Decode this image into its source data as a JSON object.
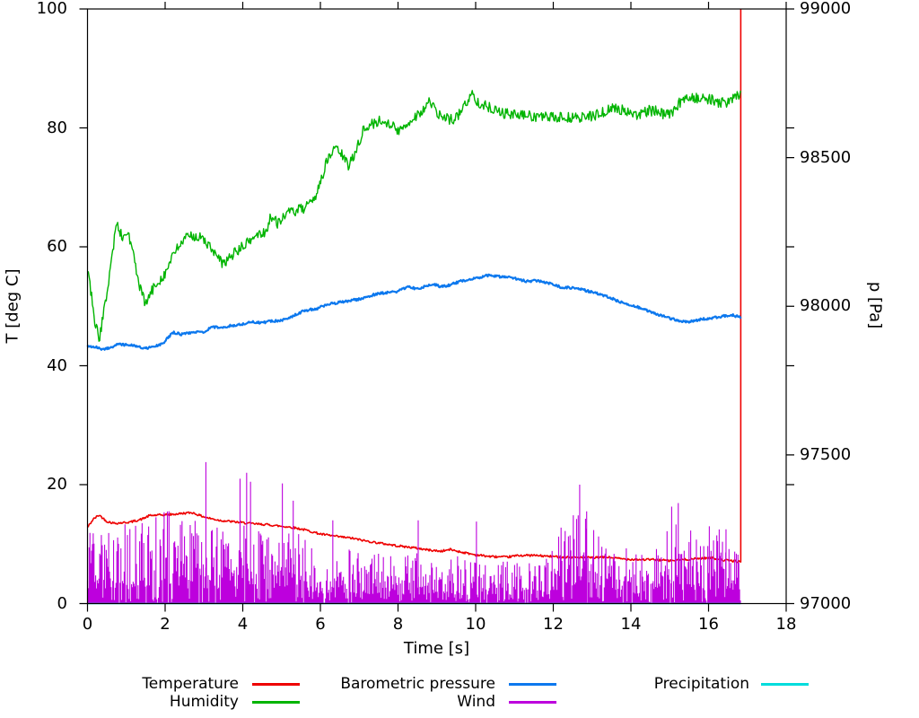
{
  "chart_data": {
    "type": "line",
    "title": "",
    "xlabel": "Time [s]",
    "ylabel_left": "T [deg C]",
    "ylabel_right": "p [Pa]",
    "xlim": [
      0,
      18
    ],
    "ylim_left": [
      0,
      100
    ],
    "ylim_right": [
      97000,
      99000
    ],
    "x_ticks": [
      0,
      2,
      4,
      6,
      8,
      10,
      12,
      14,
      16,
      18
    ],
    "y_ticks_left": [
      0,
      20,
      40,
      60,
      80,
      100
    ],
    "y_ticks_right": [
      97000,
      97500,
      98000,
      98500,
      99000
    ],
    "grid": false,
    "legend_position": "bottom",
    "x_end": 16.83,
    "noise_seed": 42,
    "series": [
      {
        "id": "temperature",
        "name": "Temperature",
        "color": "#ee0000",
        "axis": "left",
        "style": "line",
        "noise": 0.18,
        "width": 1.6,
        "spike_to_top": true,
        "anchors": [
          [
            0,
            12.8
          ],
          [
            0.15,
            14.2
          ],
          [
            0.3,
            14.9
          ],
          [
            0.5,
            13.8
          ],
          [
            0.7,
            13.5
          ],
          [
            0.9,
            13.6
          ],
          [
            1.1,
            13.7
          ],
          [
            1.4,
            14.2
          ],
          [
            1.6,
            14.8
          ],
          [
            1.9,
            14.9
          ],
          [
            2.2,
            15.0
          ],
          [
            2.5,
            15.2
          ],
          [
            2.7,
            15.3
          ],
          [
            2.9,
            14.8
          ],
          [
            3.1,
            14.4
          ],
          [
            3.4,
            14.0
          ],
          [
            3.7,
            13.8
          ],
          [
            4.0,
            13.6
          ],
          [
            4.3,
            13.4
          ],
          [
            4.6,
            13.3
          ],
          [
            5.0,
            13.0
          ],
          [
            5.3,
            12.8
          ],
          [
            5.6,
            12.4
          ],
          [
            6.0,
            11.7
          ],
          [
            6.4,
            11.3
          ],
          [
            6.8,
            11.0
          ],
          [
            7.2,
            10.5
          ],
          [
            7.6,
            10.1
          ],
          [
            8.0,
            9.7
          ],
          [
            8.4,
            9.4
          ],
          [
            8.8,
            9.0
          ],
          [
            9.1,
            8.8
          ],
          [
            9.35,
            9.1
          ],
          [
            9.6,
            8.7
          ],
          [
            10.0,
            8.2
          ],
          [
            10.4,
            7.9
          ],
          [
            10.8,
            7.8
          ],
          [
            11.1,
            8.1
          ],
          [
            11.5,
            8.1
          ],
          [
            12.0,
            7.9
          ],
          [
            12.5,
            7.8
          ],
          [
            13.0,
            7.7
          ],
          [
            13.4,
            7.8
          ],
          [
            13.8,
            7.5
          ],
          [
            14.2,
            7.4
          ],
          [
            14.6,
            7.4
          ],
          [
            15.0,
            7.2
          ],
          [
            15.4,
            7.4
          ],
          [
            15.8,
            7.6
          ],
          [
            16.1,
            7.7
          ],
          [
            16.35,
            7.3
          ],
          [
            16.6,
            7.2
          ],
          [
            16.83,
            7.0
          ]
        ]
      },
      {
        "id": "humidity",
        "name": "Humidity",
        "color": "#00b400",
        "axis": "left",
        "style": "line",
        "noise": 0.9,
        "width": 1.4,
        "spike_to_top": false,
        "anchors": [
          [
            0,
            56.5
          ],
          [
            0.1,
            52
          ],
          [
            0.2,
            47
          ],
          [
            0.3,
            44.5
          ],
          [
            0.45,
            50
          ],
          [
            0.6,
            57
          ],
          [
            0.75,
            64
          ],
          [
            0.9,
            61.5
          ],
          [
            1.05,
            62.5
          ],
          [
            1.2,
            58
          ],
          [
            1.35,
            53
          ],
          [
            1.5,
            50.3
          ],
          [
            1.65,
            52.5
          ],
          [
            1.8,
            54
          ],
          [
            2.0,
            55.5
          ],
          [
            2.2,
            58.5
          ],
          [
            2.45,
            61
          ],
          [
            2.7,
            62
          ],
          [
            2.9,
            61.5
          ],
          [
            3.1,
            60.5
          ],
          [
            3.3,
            58.5
          ],
          [
            3.5,
            57
          ],
          [
            3.7,
            58.5
          ],
          [
            3.9,
            59.5
          ],
          [
            4.1,
            60.5
          ],
          [
            4.35,
            62
          ],
          [
            4.6,
            62.5
          ],
          [
            4.7,
            65
          ],
          [
            4.9,
            64
          ],
          [
            5.1,
            65.5
          ],
          [
            5.35,
            66
          ],
          [
            5.6,
            66.5
          ],
          [
            5.8,
            67.3
          ],
          [
            6.0,
            71
          ],
          [
            6.15,
            74
          ],
          [
            6.3,
            76
          ],
          [
            6.45,
            76.5
          ],
          [
            6.6,
            75
          ],
          [
            6.72,
            73.5
          ],
          [
            6.9,
            76
          ],
          [
            7.1,
            79.5
          ],
          [
            7.3,
            80.5
          ],
          [
            7.55,
            81.2
          ],
          [
            7.8,
            80.8
          ],
          [
            8.0,
            79.3
          ],
          [
            8.2,
            80.5
          ],
          [
            8.45,
            82
          ],
          [
            8.7,
            83.3
          ],
          [
            8.8,
            84.5
          ],
          [
            9.0,
            82.5
          ],
          [
            9.2,
            81.5
          ],
          [
            9.45,
            81.5
          ],
          [
            9.6,
            82.5
          ],
          [
            9.75,
            84.2
          ],
          [
            9.9,
            85.6
          ],
          [
            10.1,
            84.2
          ],
          [
            10.35,
            83.4
          ],
          [
            10.55,
            83.2
          ],
          [
            10.7,
            82.4
          ],
          [
            11.0,
            82.2
          ],
          [
            11.4,
            82
          ],
          [
            11.8,
            81.8
          ],
          [
            12.2,
            81.7
          ],
          [
            12.6,
            81.7
          ],
          [
            13.0,
            82
          ],
          [
            13.3,
            82.6
          ],
          [
            13.55,
            83.4
          ],
          [
            13.75,
            83
          ],
          [
            14.0,
            82.6
          ],
          [
            14.2,
            82.2
          ],
          [
            14.45,
            82.9
          ],
          [
            14.65,
            82.9
          ],
          [
            14.85,
            82.3
          ],
          [
            15.05,
            82.2
          ],
          [
            15.25,
            84.2
          ],
          [
            15.45,
            85.4
          ],
          [
            15.65,
            85.1
          ],
          [
            15.85,
            84.8
          ],
          [
            16.1,
            84.8
          ],
          [
            16.3,
            84.1
          ],
          [
            16.5,
            84.4
          ],
          [
            16.7,
            85.2
          ],
          [
            16.83,
            86
          ]
        ]
      },
      {
        "id": "pressure",
        "name": "Barometric pressure",
        "color": "#0c78ee",
        "axis": "right",
        "style": "line",
        "noise": 4,
        "width": 2.2,
        "spike_to_top": false,
        "anchors": [
          [
            0,
            97866
          ],
          [
            0.2,
            97864
          ],
          [
            0.4,
            97855
          ],
          [
            0.6,
            97862
          ],
          [
            0.8,
            97872
          ],
          [
            1.0,
            97870
          ],
          [
            1.2,
            97868
          ],
          [
            1.45,
            97858
          ],
          [
            1.7,
            97863
          ],
          [
            1.95,
            97876
          ],
          [
            2.2,
            97912
          ],
          [
            2.45,
            97905
          ],
          [
            2.7,
            97913
          ],
          [
            3.0,
            97914
          ],
          [
            3.2,
            97930
          ],
          [
            3.45,
            97928
          ],
          [
            3.7,
            97935
          ],
          [
            3.95,
            97938
          ],
          [
            4.2,
            97948
          ],
          [
            4.45,
            97944
          ],
          [
            4.7,
            97949
          ],
          [
            5.0,
            97952
          ],
          [
            5.3,
            97968
          ],
          [
            5.6,
            97986
          ],
          [
            5.9,
            97992
          ],
          [
            6.2,
            98006
          ],
          [
            6.5,
            98014
          ],
          [
            6.8,
            98020
          ],
          [
            7.1,
            98026
          ],
          [
            7.4,
            98040
          ],
          [
            7.7,
            98046
          ],
          [
            8.0,
            98050
          ],
          [
            8.25,
            98066
          ],
          [
            8.5,
            98058
          ],
          [
            8.75,
            98070
          ],
          [
            8.9,
            98076
          ],
          [
            9.1,
            98066
          ],
          [
            9.3,
            98070
          ],
          [
            9.6,
            98084
          ],
          [
            9.9,
            98092
          ],
          [
            10.1,
            98096
          ],
          [
            10.3,
            98104
          ],
          [
            10.55,
            98100
          ],
          [
            10.8,
            98098
          ],
          [
            11.0,
            98094
          ],
          [
            11.3,
            98084
          ],
          [
            11.6,
            98086
          ],
          [
            11.9,
            98078
          ],
          [
            12.2,
            98064
          ],
          [
            12.5,
            98062
          ],
          [
            12.8,
            98054
          ],
          [
            13.1,
            98044
          ],
          [
            13.4,
            98032
          ],
          [
            13.7,
            98016
          ],
          [
            14.0,
            98004
          ],
          [
            14.3,
            97992
          ],
          [
            14.6,
            97976
          ],
          [
            14.9,
            97964
          ],
          [
            15.2,
            97952
          ],
          [
            15.5,
            97948
          ],
          [
            15.8,
            97956
          ],
          [
            16.1,
            97960
          ],
          [
            16.35,
            97966
          ],
          [
            16.6,
            97970
          ],
          [
            16.83,
            97964
          ]
        ]
      },
      {
        "id": "wind",
        "name": "Wind",
        "color": "#bd00dd",
        "axis": "left",
        "style": "spikes",
        "width": 1.1,
        "step": 0.021,
        "low_prob": 0.18,
        "envelope": [
          [
            0,
            13
          ],
          [
            0.5,
            14
          ],
          [
            1,
            13.5
          ],
          [
            1.5,
            14
          ],
          [
            2,
            16
          ],
          [
            2.5,
            14
          ],
          [
            3,
            14.5
          ],
          [
            3.5,
            13
          ],
          [
            4,
            14
          ],
          [
            4.3,
            13
          ],
          [
            4.6,
            12
          ],
          [
            5.0,
            13.5
          ],
          [
            5.5,
            12
          ],
          [
            5.8,
            11
          ],
          [
            5.9,
            4.5
          ],
          [
            6.1,
            5.5
          ],
          [
            6.3,
            10
          ],
          [
            6.5,
            9
          ],
          [
            6.8,
            10
          ],
          [
            7.2,
            8
          ],
          [
            7.6,
            9
          ],
          [
            8.0,
            8
          ],
          [
            8.4,
            9
          ],
          [
            9.0,
            7
          ],
          [
            9.5,
            8
          ],
          [
            10.0,
            8
          ],
          [
            10.5,
            7
          ],
          [
            11.0,
            8
          ],
          [
            11.5,
            7
          ],
          [
            11.9,
            8
          ],
          [
            12.2,
            13
          ],
          [
            12.5,
            15
          ],
          [
            12.7,
            16
          ],
          [
            12.9,
            14
          ],
          [
            13.1,
            12
          ],
          [
            13.4,
            9
          ],
          [
            13.8,
            10
          ],
          [
            14.2,
            9
          ],
          [
            14.6,
            12
          ],
          [
            15.0,
            14
          ],
          [
            15.2,
            14
          ],
          [
            15.4,
            12
          ],
          [
            15.7,
            13
          ],
          [
            16.0,
            12
          ],
          [
            16.3,
            13
          ],
          [
            16.6,
            11
          ],
          [
            16.83,
            12
          ]
        ],
        "spikes": [
          [
            3.05,
            23.8
          ],
          [
            3.93,
            21
          ],
          [
            4.1,
            22
          ],
          [
            4.2,
            20.5
          ],
          [
            5.02,
            20.2
          ],
          [
            5.3,
            17.3
          ],
          [
            6.32,
            14
          ],
          [
            8.52,
            14
          ],
          [
            10.02,
            13.8
          ],
          [
            12.68,
            20
          ],
          [
            12.86,
            15.5
          ],
          [
            15.05,
            16.3
          ],
          [
            15.22,
            16.9
          ],
          [
            16.02,
            13
          ],
          [
            16.45,
            12.5
          ]
        ]
      },
      {
        "id": "precipitation",
        "name": "Precipitation",
        "color": "#00dcdc",
        "axis": "left",
        "style": "line",
        "noise": 0,
        "width": 1.6,
        "spike_to_top": false,
        "anchors": [
          [
            0,
            0
          ],
          [
            16.83,
            0
          ]
        ]
      }
    ]
  },
  "legend": {
    "items": [
      {
        "label": "Temperature",
        "series_id": "temperature",
        "slot": 0
      },
      {
        "label": "Barometric pressure",
        "series_id": "pressure",
        "slot": 1
      },
      {
        "label": "Precipitation",
        "series_id": "precipitation",
        "slot": 2
      },
      {
        "label": "Humidity",
        "series_id": "humidity",
        "slot": 3
      },
      {
        "label": "Wind",
        "series_id": "wind",
        "slot": 4
      }
    ]
  }
}
